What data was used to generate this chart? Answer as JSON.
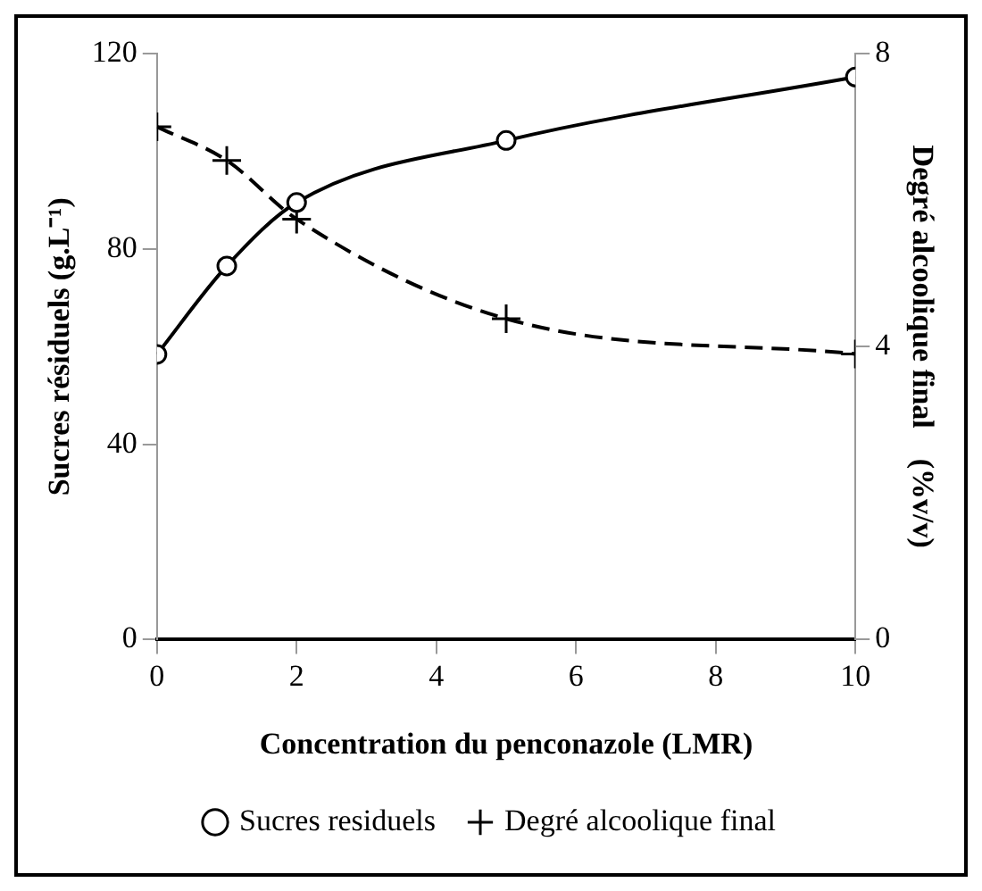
{
  "chart_data": {
    "type": "line",
    "xlabel": "Concentration du penconazole (LMR)",
    "ylabel": "Sucres résiduels (g.L⁻¹)",
    "y2label": "Degré alcoolique final    (%v/v)",
    "x": [
      0,
      1,
      2,
      5,
      10
    ],
    "series": [
      {
        "name": "Sucres residuels",
        "color": "#000000",
        "values": [
          58.4,
          76.5,
          89.5,
          102.2,
          115.2
        ],
        "marker": "circle",
        "line_style": "solid"
      },
      {
        "name": "Degré alcoolique final",
        "color": "#000000",
        "values": [
          7.0,
          6.54,
          5.74,
          4.38,
          3.9
        ],
        "marker": "cross",
        "line_style": "dashed",
        "axis": "y2"
      }
    ],
    "xlim": [
      0,
      10
    ],
    "xticks": [
      0,
      2,
      4,
      6,
      8,
      10
    ],
    "ylim": [
      0,
      120
    ],
    "yticks": [
      0,
      40,
      80,
      120
    ],
    "y2lim": [
      0,
      8
    ],
    "y2ticks": [
      0,
      4,
      8
    ],
    "grid": false,
    "legend": "bottom"
  }
}
